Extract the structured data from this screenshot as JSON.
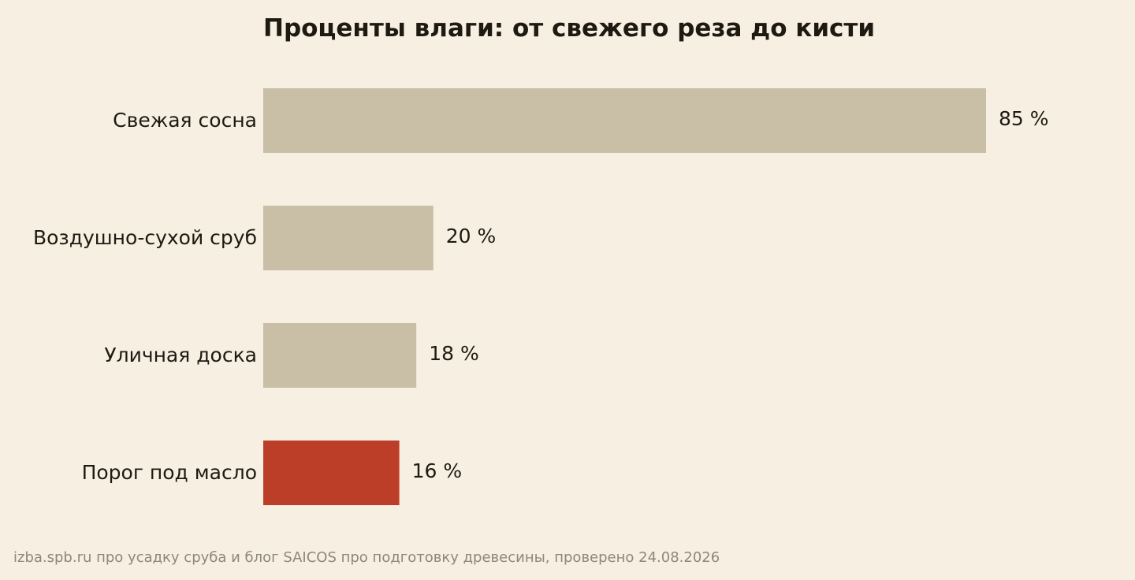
{
  "colors": {
    "background": "#f6efe2",
    "bar_default": "#c9bfa7",
    "bar_highlight": "#bc3e28",
    "text": "#1e1a12",
    "note": "#8e877b"
  },
  "chart_data": {
    "type": "bar",
    "orientation": "horizontal",
    "title": "Проценты влаги: от свежего реза до кисти",
    "categories": [
      "Свежая сосна",
      "Воздушно-сухой сруб",
      "Уличная доска",
      "Порог под масло"
    ],
    "values": [
      85,
      20,
      18,
      16
    ],
    "value_labels": [
      "85 %",
      "20 %",
      "18 %",
      "16 %"
    ],
    "highlight_index": 3,
    "xlabel": "",
    "ylabel": "",
    "xlim": [
      0,
      85
    ],
    "grid": false,
    "legend": "none"
  },
  "source_note": "izba.spb.ru про усадку сруба и блог SAICOS про подготовку древесины, проверено 24.08.2026"
}
